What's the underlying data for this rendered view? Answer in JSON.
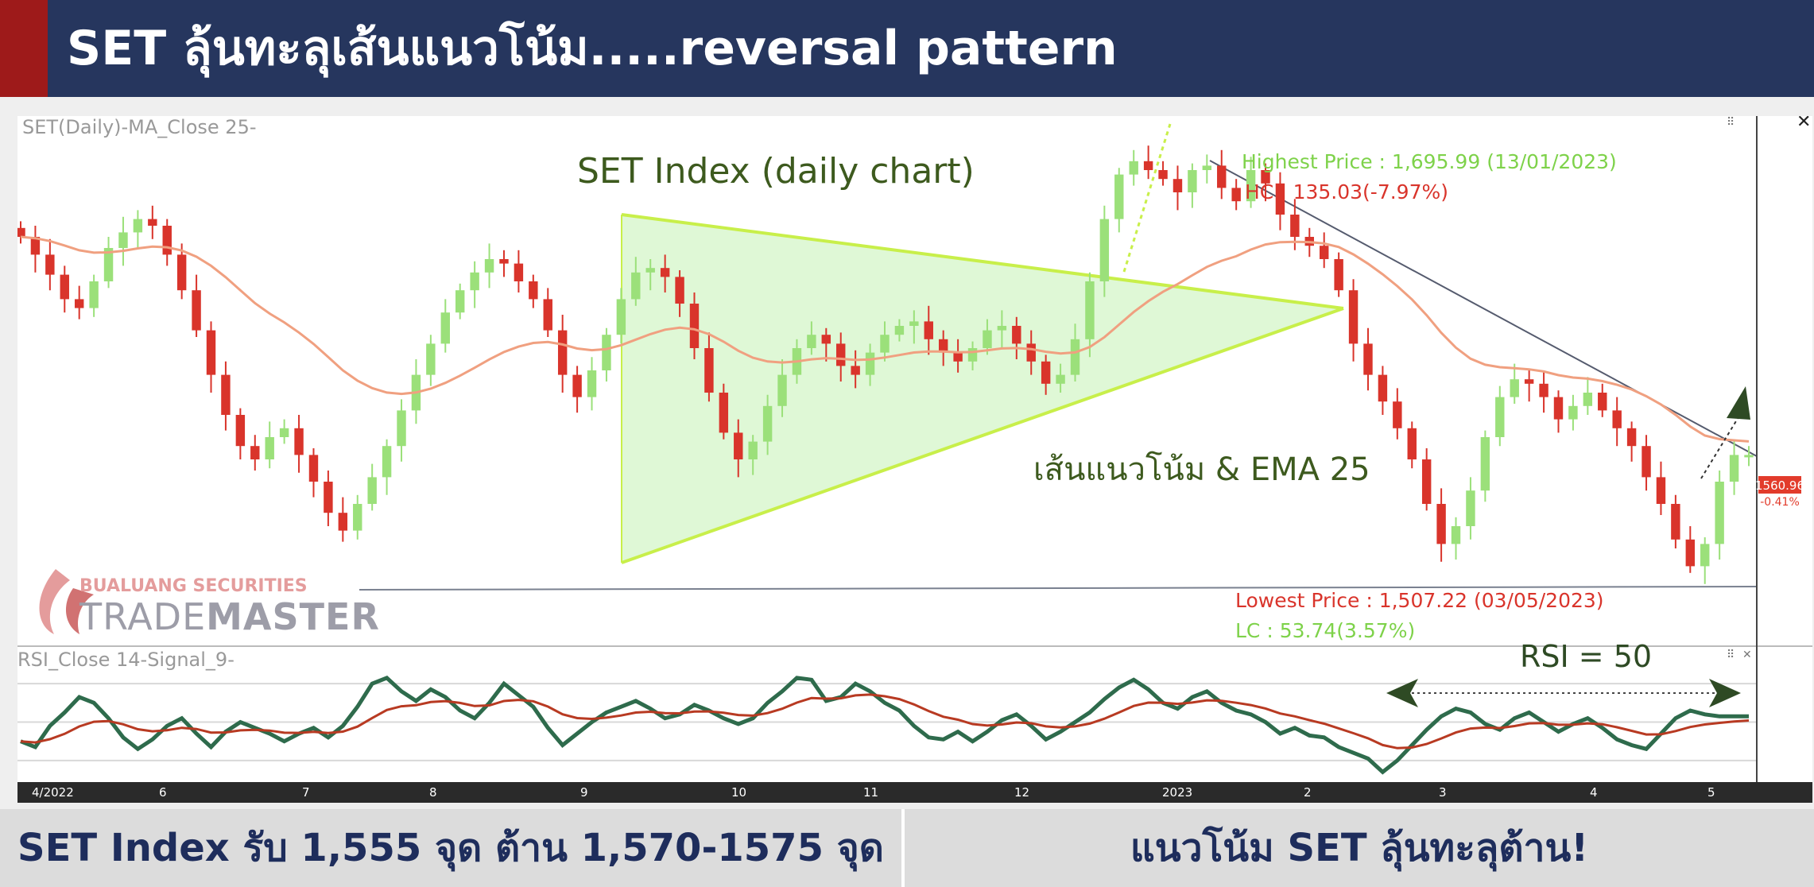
{
  "header": {
    "title": "SET ลุ้นทะลุเส้นแนวโน้ม.....reversal pattern"
  },
  "chart": {
    "panel_label": "SET(Daily)-MA_Close 25-",
    "rsi_label": "RSI_Close 14-Signal_9-",
    "annotations": {
      "title": "SET Index (daily chart)",
      "trend": "เส้นแนวโน้ม & EMA 25",
      "highest": "Highest Price : 1,695.99 (13/01/2023)",
      "hc": "HC : 135.03(-7.97%)",
      "lowest": "Lowest Price : 1,507.22 (03/05/2023)",
      "lc": "LC : 53.74(3.57%)",
      "rsi": "RSI = 50",
      "price_tag": "1560.96",
      "price_change": "-0.41%"
    },
    "logo": {
      "brand": "BUALUANG SECURITIES",
      "product_light": "TRADE",
      "product_bold": "MASTER"
    },
    "colors": {
      "up": "#9be07a",
      "down": "#d9342b",
      "ema": "#f0a080",
      "rsi": "#2e6b4c",
      "signal": "#b83a22",
      "triangle_fill": "#d4f5c8",
      "triangle_edge": "#c8ef4a"
    }
  },
  "chart_data": {
    "type": "line",
    "title": "SET Index (daily chart)",
    "x_tick_labels": [
      "4/2022",
      "6",
      "7",
      "8",
      "9",
      "10",
      "11",
      "12",
      "2023",
      "2",
      "3",
      "4",
      "5"
    ],
    "price": {
      "name": "SET",
      "values": [
        1660,
        1652,
        1643,
        1632,
        1628,
        1640,
        1655,
        1662,
        1668,
        1665,
        1652,
        1636,
        1618,
        1598,
        1580,
        1566,
        1560,
        1570,
        1574,
        1562,
        1550,
        1536,
        1528,
        1540,
        1552,
        1566,
        1582,
        1598,
        1612,
        1626,
        1636,
        1644,
        1650,
        1648,
        1640,
        1632,
        1618,
        1598,
        1588,
        1600,
        1616,
        1632,
        1644,
        1646,
        1642,
        1630,
        1610,
        1590,
        1572,
        1560,
        1568,
        1584,
        1598,
        1610,
        1616,
        1612,
        1602,
        1598,
        1608,
        1616,
        1620,
        1622,
        1614,
        1608,
        1604,
        1610,
        1618,
        1620,
        1612,
        1604,
        1594,
        1598,
        1614,
        1640,
        1668,
        1688,
        1694,
        1690,
        1686,
        1680,
        1690,
        1692,
        1682,
        1676,
        1690,
        1684,
        1670,
        1660,
        1656,
        1650,
        1636,
        1612,
        1598,
        1586,
        1574,
        1560,
        1540,
        1522,
        1530,
        1546,
        1570,
        1588,
        1596,
        1594,
        1588,
        1578,
        1584,
        1590,
        1582,
        1574,
        1566,
        1552,
        1540,
        1524,
        1512,
        1522,
        1550,
        1562,
        1562
      ]
    },
    "ema": {
      "name": "MA_Close 25",
      "period": 25
    },
    "rsi": {
      "name": "RSI_Close 14",
      "values": [
        40,
        37,
        48,
        55,
        63,
        60,
        52,
        42,
        36,
        41,
        48,
        52,
        44,
        37,
        45,
        50,
        47,
        44,
        40,
        44,
        47,
        42,
        48,
        58,
        70,
        73,
        66,
        61,
        67,
        63,
        56,
        52,
        60,
        70,
        64,
        58,
        47,
        38,
        44,
        50,
        55,
        58,
        61,
        57,
        52,
        54,
        59,
        56,
        52,
        49,
        52,
        60,
        66,
        73,
        72,
        61,
        63,
        70,
        66,
        60,
        56,
        48,
        42,
        41,
        45,
        40,
        45,
        51,
        54,
        48,
        41,
        45,
        50,
        55,
        62,
        68,
        72,
        67,
        60,
        57,
        63,
        66,
        60,
        56,
        54,
        50,
        44,
        47,
        43,
        42,
        37,
        34,
        31,
        24,
        30,
        38,
        46,
        53,
        57,
        55,
        49,
        46,
        52,
        55,
        50,
        45,
        49,
        52,
        47,
        41,
        38,
        36,
        44,
        52,
        56,
        54,
        53,
        53,
        53
      ],
      "signal_period": 9,
      "levels": [
        70,
        50,
        30
      ]
    },
    "annotations": {
      "highest": {
        "value": 1695.99,
        "date": "13/01/2023"
      },
      "lowest": {
        "value": 1507.22,
        "date": "03/05/2023"
      },
      "last": 1560.96
    }
  },
  "footer": {
    "left": "SET Index รับ 1,555 จุด ต้าน 1,570-1575 จุด",
    "right": "แนวโน้ม SET ลุ้นทะลุต้าน!"
  }
}
